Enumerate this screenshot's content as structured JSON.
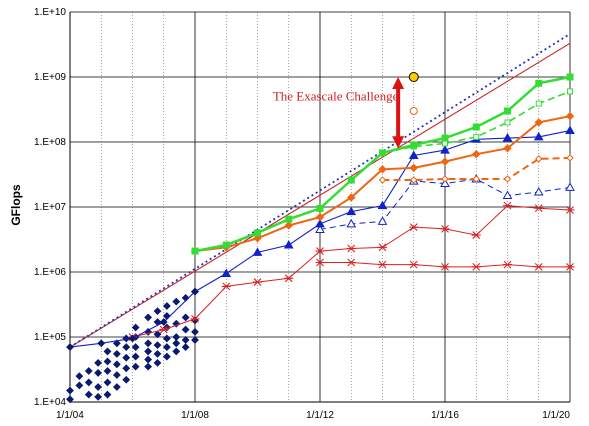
{
  "chart_data": {
    "type": "line",
    "title": "",
    "xlabel": "",
    "ylabel": "GFlops",
    "y_scale": "log",
    "ylim": [
      10000,
      10000000000
    ],
    "xlim": [
      2004,
      2020
    ],
    "x_tick_labels": [
      "1/1/04",
      "1/1/08",
      "1/1/12",
      "1/1/16",
      "1/1/20"
    ],
    "x_tick_values": [
      2004,
      2008,
      2012,
      2016,
      2020
    ],
    "y_tick_labels": [
      "1.E+04",
      "1.E+05",
      "1.E+06",
      "1.E+07",
      "1.E+08",
      "1.E+09",
      "1.E+10"
    ],
    "y_tick_values": [
      10000,
      100000,
      1000000,
      10000000,
      100000000,
      1000000000,
      10000000000
    ],
    "grid": {
      "x_major": true,
      "y_major": true,
      "x_minor_dotted": true
    },
    "annotation": {
      "text": "The Exascale Challenge",
      "x": 2012.5,
      "y": 500000000
    },
    "challenge_arrow": {
      "x": 2014.5,
      "from": 80000000,
      "to": 1000000000,
      "color": "#dd1111"
    },
    "colors": {
      "trend_solid": "#cc2222",
      "trend_dotted": "#2233bb",
      "green": "#33dd33",
      "orange": "#ee6611",
      "blue": "#1122cc",
      "red": "#dd2222",
      "navy": "#0a1a6e",
      "target_fill": "#ffcc00"
    },
    "series": [
      {
        "style": "trend_solid",
        "points": [
          [
            2004,
            70000
          ],
          [
            2020,
            3300000000
          ]
        ]
      },
      {
        "style": "trend_dotted",
        "points": [
          [
            2004,
            70000
          ],
          [
            2020,
            4600000000
          ]
        ]
      },
      {
        "style": "green_solid",
        "points": [
          [
            2008,
            2100000
          ],
          [
            2009,
            2600000
          ],
          [
            2010,
            4000000
          ],
          [
            2011,
            6500000
          ],
          [
            2012,
            9500000
          ],
          [
            2013,
            26000000
          ],
          [
            2014,
            68000000
          ],
          [
            2015,
            90000000
          ],
          [
            2016,
            115000000
          ],
          [
            2017,
            170000000
          ],
          [
            2018,
            300000000
          ],
          [
            2019,
            800000000
          ],
          [
            2020,
            1000000000
          ]
        ]
      },
      {
        "style": "green_dashed",
        "points": [
          [
            2014,
            68000000
          ],
          [
            2015,
            85000000
          ],
          [
            2016,
            95000000
          ],
          [
            2017,
            120000000
          ],
          [
            2018,
            200000000
          ],
          [
            2019,
            390000000
          ],
          [
            2020,
            600000000
          ]
        ]
      },
      {
        "style": "orange_solid",
        "points": [
          [
            2008,
            2100000
          ],
          [
            2009,
            2400000
          ],
          [
            2010,
            3300000
          ],
          [
            2011,
            5200000
          ],
          [
            2012,
            7000000
          ],
          [
            2013,
            14000000
          ],
          [
            2014,
            38000000
          ],
          [
            2015,
            40000000
          ],
          [
            2016,
            50000000
          ],
          [
            2017,
            65000000
          ],
          [
            2018,
            80000000
          ],
          [
            2019,
            200000000
          ],
          [
            2020,
            250000000
          ]
        ]
      },
      {
        "style": "orange_dashed",
        "points": [
          [
            2014,
            26000000
          ],
          [
            2015,
            26000000
          ],
          [
            2016,
            27000000
          ],
          [
            2017,
            27000000
          ],
          [
            2018,
            27000000
          ],
          [
            2019,
            55000000
          ],
          [
            2020,
            57000000
          ]
        ]
      },
      {
        "style": "blue_solid",
        "points": [
          [
            2004,
            70000
          ],
          [
            2005,
            80000
          ],
          [
            2006,
            95000
          ],
          [
            2007,
            170000
          ],
          [
            2008,
            500000
          ],
          [
            2009,
            950000
          ],
          [
            2010,
            2000000
          ],
          [
            2011,
            2600000
          ],
          [
            2012,
            5500000
          ],
          [
            2013,
            8500000
          ],
          [
            2014,
            10500000
          ],
          [
            2015,
            62000000
          ],
          [
            2016,
            75000000
          ],
          [
            2017,
            110000000
          ],
          [
            2018,
            115000000
          ],
          [
            2019,
            120000000
          ],
          [
            2020,
            150000000
          ]
        ]
      },
      {
        "style": "blue_dashed",
        "points": [
          [
            2012,
            4500000
          ],
          [
            2013,
            5500000
          ],
          [
            2014,
            6000000
          ],
          [
            2015,
            25000000
          ],
          [
            2016,
            23000000
          ],
          [
            2017,
            27000000
          ],
          [
            2018,
            15000000
          ],
          [
            2019,
            17000000
          ],
          [
            2020,
            20000000
          ]
        ]
      },
      {
        "style": "red_upper",
        "points": [
          [
            2006,
            100000
          ],
          [
            2007,
            130000
          ],
          [
            2008,
            190000
          ],
          [
            2009,
            600000
          ],
          [
            2010,
            700000
          ],
          [
            2011,
            800000
          ],
          [
            2012,
            2100000
          ],
          [
            2013,
            2300000
          ],
          [
            2014,
            2400000
          ],
          [
            2015,
            4900000
          ],
          [
            2016,
            4600000
          ],
          [
            2017,
            3700000
          ],
          [
            2018,
            10500000
          ],
          [
            2019,
            9600000
          ],
          [
            2020,
            9000000
          ]
        ]
      },
      {
        "style": "red_lower",
        "points": [
          [
            2012,
            1400000
          ],
          [
            2013,
            1400000
          ],
          [
            2014,
            1300000
          ],
          [
            2015,
            1300000
          ],
          [
            2016,
            1200000
          ],
          [
            2017,
            1200000
          ],
          [
            2018,
            1300000
          ],
          [
            2019,
            1200000
          ],
          [
            2020,
            1200000
          ]
        ]
      },
      {
        "style": "navy_scatter",
        "points": [
          [
            2004.0,
            15000
          ],
          [
            2004.0,
            11000
          ],
          [
            2004.3,
            25000
          ],
          [
            2004.3,
            18000
          ],
          [
            2004.6,
            30000
          ],
          [
            2004.6,
            20000
          ],
          [
            2004.6,
            13000
          ],
          [
            2004.9,
            40000
          ],
          [
            2004.9,
            28000
          ],
          [
            2004.9,
            17000
          ],
          [
            2004.9,
            12000
          ],
          [
            2005.2,
            60000
          ],
          [
            2005.2,
            42000
          ],
          [
            2005.2,
            30000
          ],
          [
            2005.2,
            20000
          ],
          [
            2005.2,
            13000
          ],
          [
            2005.5,
            80000
          ],
          [
            2005.5,
            55000
          ],
          [
            2005.5,
            38000
          ],
          [
            2005.5,
            26000
          ],
          [
            2005.5,
            17000
          ],
          [
            2005.8,
            95000
          ],
          [
            2005.8,
            70000
          ],
          [
            2005.8,
            48000
          ],
          [
            2005.8,
            33000
          ],
          [
            2005.8,
            22000
          ],
          [
            2006.1,
            140000
          ],
          [
            2006.1,
            100000
          ],
          [
            2006.1,
            70000
          ],
          [
            2006.1,
            50000
          ],
          [
            2006.1,
            35000
          ],
          [
            2006.5,
            200000
          ],
          [
            2006.5,
            120000
          ],
          [
            2006.5,
            80000
          ],
          [
            2006.5,
            60000
          ],
          [
            2006.5,
            45000
          ],
          [
            2006.5,
            35000
          ],
          [
            2006.8,
            250000
          ],
          [
            2006.8,
            170000
          ],
          [
            2006.8,
            110000
          ],
          [
            2006.8,
            75000
          ],
          [
            2006.8,
            55000
          ],
          [
            2006.8,
            40000
          ],
          [
            2007.1,
            300000
          ],
          [
            2007.1,
            210000
          ],
          [
            2007.1,
            140000
          ],
          [
            2007.1,
            95000
          ],
          [
            2007.1,
            70000
          ],
          [
            2007.1,
            50000
          ],
          [
            2007.4,
            350000
          ],
          [
            2007.4,
            160000
          ],
          [
            2007.4,
            100000
          ],
          [
            2007.4,
            80000
          ],
          [
            2007.4,
            60000
          ],
          [
            2007.7,
            400000
          ],
          [
            2007.7,
            200000
          ],
          [
            2007.7,
            130000
          ],
          [
            2007.7,
            90000
          ],
          [
            2007.7,
            70000
          ],
          [
            2008.0,
            500000
          ],
          [
            2008.0,
            180000
          ],
          [
            2008.0,
            120000
          ],
          [
            2008.0,
            90000
          ]
        ]
      },
      {
        "style": "target",
        "points": [
          [
            2015,
            1000000000
          ]
        ]
      },
      {
        "style": "orange_open",
        "points": [
          [
            2015,
            300000000
          ]
        ]
      }
    ]
  }
}
